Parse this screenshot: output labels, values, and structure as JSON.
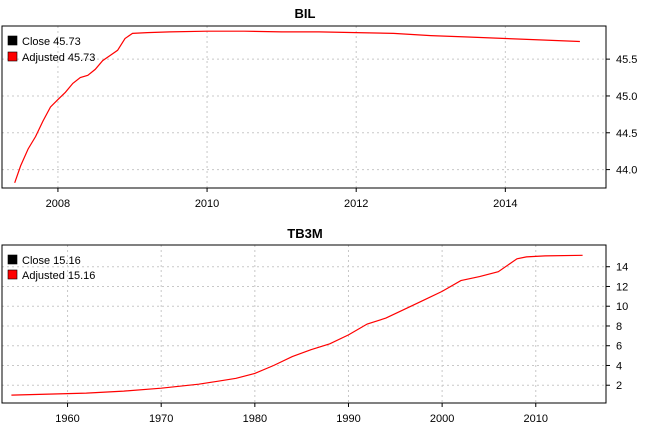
{
  "chart_data": [
    {
      "type": "line",
      "title": "BIL",
      "xlabel": "",
      "ylabel": "",
      "xlim": [
        2007.25,
        2015.35
      ],
      "ylim": [
        43.75,
        45.95
      ],
      "x_ticks": [
        2008,
        2010,
        2012,
        2014
      ],
      "x_tick_labels": [
        "2008",
        "2010",
        "2012",
        "2014"
      ],
      "y_ticks": [
        44.0,
        44.5,
        45.0,
        45.5
      ],
      "y_tick_labels": [
        "44.0",
        "44.5",
        "45.0",
        "45.5"
      ],
      "y_axis_side": "right",
      "grid": true,
      "legend_position": "top-left",
      "legend": [
        {
          "label": "Close 45.73",
          "color": "#000000"
        },
        {
          "label": "Adjusted 45.73",
          "color": "#ff0000"
        }
      ],
      "series": [
        {
          "color": "#ff0000",
          "x": [
            2007.42,
            2007.5,
            2007.6,
            2007.7,
            2007.8,
            2007.9,
            2008.0,
            2008.1,
            2008.2,
            2008.3,
            2008.4,
            2008.5,
            2008.6,
            2008.7,
            2008.8,
            2008.9,
            2009.0,
            2009.2,
            2009.5,
            2010.0,
            2010.5,
            2011.0,
            2011.5,
            2012.0,
            2012.5,
            2013.0,
            2013.5,
            2014.0,
            2014.5,
            2015.0
          ],
          "y": [
            43.82,
            44.05,
            44.28,
            44.45,
            44.66,
            44.85,
            44.95,
            45.05,
            45.17,
            45.25,
            45.28,
            45.36,
            45.48,
            45.55,
            45.62,
            45.78,
            45.85,
            45.86,
            45.87,
            45.88,
            45.88,
            45.87,
            45.87,
            45.86,
            45.85,
            45.82,
            45.8,
            45.78,
            45.76,
            45.74
          ]
        }
      ]
    },
    {
      "type": "line",
      "title": "TB3M",
      "xlabel": "",
      "ylabel": "",
      "xlim": [
        1953.0,
        2017.5
      ],
      "ylim": [
        0.2,
        16.2
      ],
      "x_ticks": [
        1960,
        1970,
        1980,
        1990,
        2000,
        2010
      ],
      "x_tick_labels": [
        "1960",
        "1970",
        "1980",
        "1990",
        "2000",
        "2010"
      ],
      "y_ticks": [
        2,
        4,
        6,
        8,
        10,
        12,
        14
      ],
      "y_tick_labels": [
        "2",
        "4",
        "6",
        "8",
        "10",
        "12",
        "14"
      ],
      "y_axis_side": "right",
      "grid": true,
      "legend_position": "top-left",
      "legend": [
        {
          "label": "Close 15.16",
          "color": "#000000"
        },
        {
          "label": "Adjusted 15.16",
          "color": "#ff0000"
        }
      ],
      "series": [
        {
          "color": "#ff0000",
          "x": [
            1954,
            1958,
            1962,
            1966,
            1970,
            1974,
            1976,
            1978,
            1980,
            1982,
            1984,
            1986,
            1988,
            1990,
            1992,
            1994,
            1996,
            1998,
            2000,
            2002,
            2004,
            2006,
            2008,
            2009,
            2011,
            2015
          ],
          "y": [
            1.0,
            1.1,
            1.2,
            1.4,
            1.7,
            2.1,
            2.4,
            2.7,
            3.2,
            4.0,
            4.9,
            5.6,
            6.2,
            7.1,
            8.2,
            8.8,
            9.7,
            10.6,
            11.5,
            12.6,
            13.0,
            13.5,
            14.8,
            15.0,
            15.1,
            15.16
          ]
        }
      ]
    }
  ]
}
